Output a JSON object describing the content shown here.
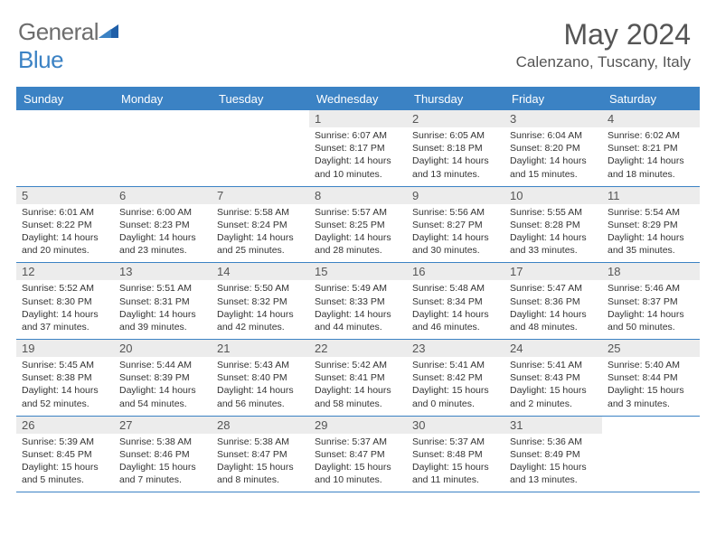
{
  "logo": {
    "part1": "General",
    "part2": "Blue"
  },
  "title": "May 2024",
  "location": "Calenzano, Tuscany, Italy",
  "colors": {
    "accent": "#3b82c4",
    "header_text": "#ffffff",
    "text": "#333333",
    "muted": "#555555",
    "daynum_bg": "#ececec"
  },
  "day_names": [
    "Sunday",
    "Monday",
    "Tuesday",
    "Wednesday",
    "Thursday",
    "Friday",
    "Saturday"
  ],
  "weeks": [
    [
      null,
      null,
      null,
      {
        "n": "1",
        "sr": "6:07 AM",
        "ss": "8:17 PM",
        "dl": "14 hours and 10 minutes."
      },
      {
        "n": "2",
        "sr": "6:05 AM",
        "ss": "8:18 PM",
        "dl": "14 hours and 13 minutes."
      },
      {
        "n": "3",
        "sr": "6:04 AM",
        "ss": "8:20 PM",
        "dl": "14 hours and 15 minutes."
      },
      {
        "n": "4",
        "sr": "6:02 AM",
        "ss": "8:21 PM",
        "dl": "14 hours and 18 minutes."
      }
    ],
    [
      {
        "n": "5",
        "sr": "6:01 AM",
        "ss": "8:22 PM",
        "dl": "14 hours and 20 minutes."
      },
      {
        "n": "6",
        "sr": "6:00 AM",
        "ss": "8:23 PM",
        "dl": "14 hours and 23 minutes."
      },
      {
        "n": "7",
        "sr": "5:58 AM",
        "ss": "8:24 PM",
        "dl": "14 hours and 25 minutes."
      },
      {
        "n": "8",
        "sr": "5:57 AM",
        "ss": "8:25 PM",
        "dl": "14 hours and 28 minutes."
      },
      {
        "n": "9",
        "sr": "5:56 AM",
        "ss": "8:27 PM",
        "dl": "14 hours and 30 minutes."
      },
      {
        "n": "10",
        "sr": "5:55 AM",
        "ss": "8:28 PM",
        "dl": "14 hours and 33 minutes."
      },
      {
        "n": "11",
        "sr": "5:54 AM",
        "ss": "8:29 PM",
        "dl": "14 hours and 35 minutes."
      }
    ],
    [
      {
        "n": "12",
        "sr": "5:52 AM",
        "ss": "8:30 PM",
        "dl": "14 hours and 37 minutes."
      },
      {
        "n": "13",
        "sr": "5:51 AM",
        "ss": "8:31 PM",
        "dl": "14 hours and 39 minutes."
      },
      {
        "n": "14",
        "sr": "5:50 AM",
        "ss": "8:32 PM",
        "dl": "14 hours and 42 minutes."
      },
      {
        "n": "15",
        "sr": "5:49 AM",
        "ss": "8:33 PM",
        "dl": "14 hours and 44 minutes."
      },
      {
        "n": "16",
        "sr": "5:48 AM",
        "ss": "8:34 PM",
        "dl": "14 hours and 46 minutes."
      },
      {
        "n": "17",
        "sr": "5:47 AM",
        "ss": "8:36 PM",
        "dl": "14 hours and 48 minutes."
      },
      {
        "n": "18",
        "sr": "5:46 AM",
        "ss": "8:37 PM",
        "dl": "14 hours and 50 minutes."
      }
    ],
    [
      {
        "n": "19",
        "sr": "5:45 AM",
        "ss": "8:38 PM",
        "dl": "14 hours and 52 minutes."
      },
      {
        "n": "20",
        "sr": "5:44 AM",
        "ss": "8:39 PM",
        "dl": "14 hours and 54 minutes."
      },
      {
        "n": "21",
        "sr": "5:43 AM",
        "ss": "8:40 PM",
        "dl": "14 hours and 56 minutes."
      },
      {
        "n": "22",
        "sr": "5:42 AM",
        "ss": "8:41 PM",
        "dl": "14 hours and 58 minutes."
      },
      {
        "n": "23",
        "sr": "5:41 AM",
        "ss": "8:42 PM",
        "dl": "15 hours and 0 minutes."
      },
      {
        "n": "24",
        "sr": "5:41 AM",
        "ss": "8:43 PM",
        "dl": "15 hours and 2 minutes."
      },
      {
        "n": "25",
        "sr": "5:40 AM",
        "ss": "8:44 PM",
        "dl": "15 hours and 3 minutes."
      }
    ],
    [
      {
        "n": "26",
        "sr": "5:39 AM",
        "ss": "8:45 PM",
        "dl": "15 hours and 5 minutes."
      },
      {
        "n": "27",
        "sr": "5:38 AM",
        "ss": "8:46 PM",
        "dl": "15 hours and 7 minutes."
      },
      {
        "n": "28",
        "sr": "5:38 AM",
        "ss": "8:47 PM",
        "dl": "15 hours and 8 minutes."
      },
      {
        "n": "29",
        "sr": "5:37 AM",
        "ss": "8:47 PM",
        "dl": "15 hours and 10 minutes."
      },
      {
        "n": "30",
        "sr": "5:37 AM",
        "ss": "8:48 PM",
        "dl": "15 hours and 11 minutes."
      },
      {
        "n": "31",
        "sr": "5:36 AM",
        "ss": "8:49 PM",
        "dl": "15 hours and 13 minutes."
      },
      null
    ]
  ],
  "labels": {
    "sunrise": "Sunrise:",
    "sunset": "Sunset:",
    "daylight": "Daylight:"
  }
}
